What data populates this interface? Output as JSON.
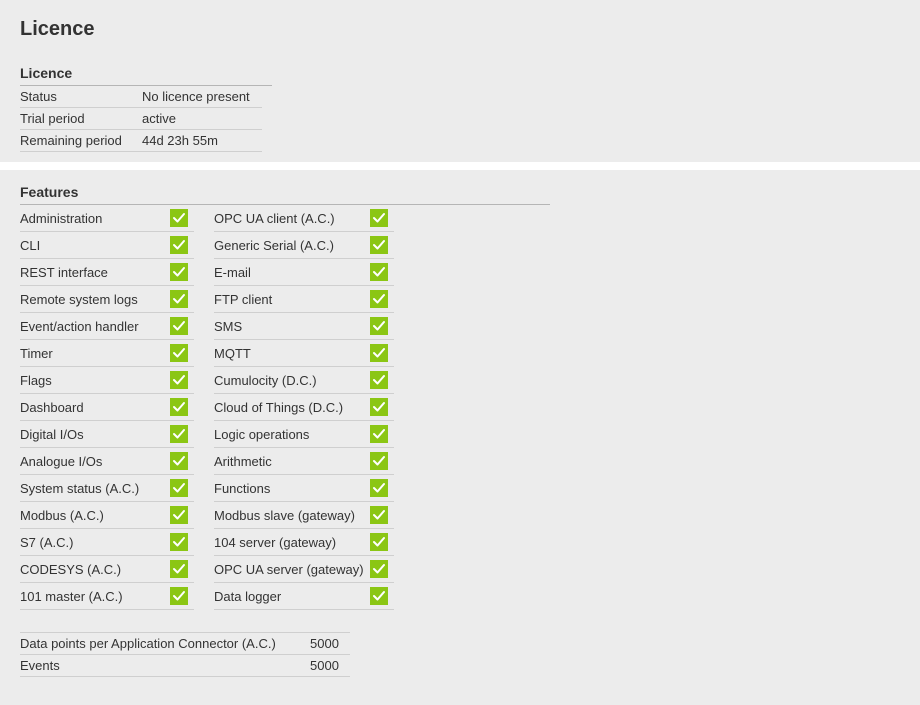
{
  "page": {
    "title": "Licence"
  },
  "licence": {
    "section_title": "Licence",
    "rows": [
      {
        "key": "Status",
        "value": "No licence present"
      },
      {
        "key": "Trial period",
        "value": "active"
      },
      {
        "key": "Remaining period",
        "value": "44d 23h 55m"
      }
    ]
  },
  "features": {
    "section_title": "Features",
    "left": [
      {
        "label": "Administration",
        "enabled": true
      },
      {
        "label": "CLI",
        "enabled": true
      },
      {
        "label": "REST interface",
        "enabled": true
      },
      {
        "label": "Remote system logs",
        "enabled": true
      },
      {
        "label": "Event/action handler",
        "enabled": true
      },
      {
        "label": "Timer",
        "enabled": true
      },
      {
        "label": "Flags",
        "enabled": true
      },
      {
        "label": "Dashboard",
        "enabled": true
      },
      {
        "label": "Digital I/Os",
        "enabled": true
      },
      {
        "label": "Analogue I/Os",
        "enabled": true
      },
      {
        "label": "System status (A.C.)",
        "enabled": true
      },
      {
        "label": "Modbus (A.C.)",
        "enabled": true
      },
      {
        "label": "S7 (A.C.)",
        "enabled": true
      },
      {
        "label": "CODESYS (A.C.)",
        "enabled": true
      },
      {
        "label": "101 master (A.C.)",
        "enabled": true
      }
    ],
    "right": [
      {
        "label": "OPC UA client (A.C.)",
        "enabled": true
      },
      {
        "label": "Generic Serial (A.C.)",
        "enabled": true
      },
      {
        "label": "E-mail",
        "enabled": true
      },
      {
        "label": "FTP client",
        "enabled": true
      },
      {
        "label": "SMS",
        "enabled": true
      },
      {
        "label": "MQTT",
        "enabled": true
      },
      {
        "label": "Cumulocity (D.C.)",
        "enabled": true
      },
      {
        "label": "Cloud of Things (D.C.)",
        "enabled": true
      },
      {
        "label": "Logic operations",
        "enabled": true
      },
      {
        "label": "Arithmetic",
        "enabled": true
      },
      {
        "label": "Functions",
        "enabled": true
      },
      {
        "label": "Modbus slave (gateway)",
        "enabled": true
      },
      {
        "label": "104 server (gateway)",
        "enabled": true
      },
      {
        "label": "OPC UA server (gateway)",
        "enabled": true
      },
      {
        "label": "Data logger",
        "enabled": true
      }
    ]
  },
  "limits": {
    "rows": [
      {
        "key": "Data points per Application Connector (A.C.)",
        "value": "5000"
      },
      {
        "key": "Events",
        "value": "5000"
      }
    ]
  },
  "colors": {
    "background": "#ececec",
    "divider": "#cfcfcf",
    "check_bg": "#8bc614",
    "check_fg": "#ffffff",
    "text": "#333333"
  }
}
